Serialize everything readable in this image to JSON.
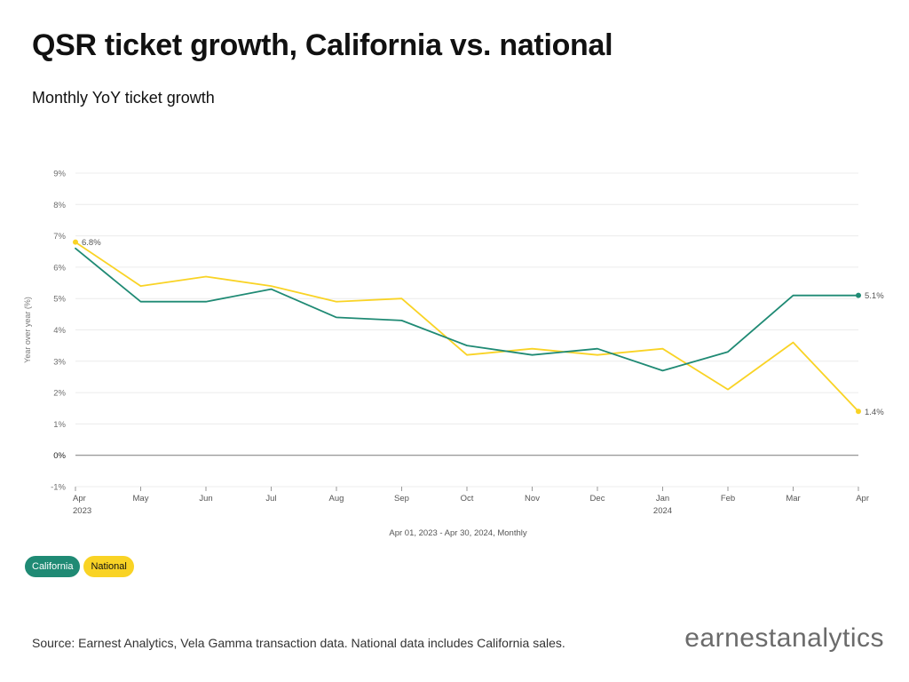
{
  "title": "QSR ticket growth, California vs. national",
  "subtitle": "Monthly YoY ticket growth",
  "chart_data": {
    "type": "line",
    "categories": [
      "Apr",
      "May",
      "Jun",
      "Jul",
      "Aug",
      "Sep",
      "Oct",
      "Nov",
      "Dec",
      "Jan",
      "Feb",
      "Mar",
      "Apr"
    ],
    "year_labels": [
      "2023",
      "",
      "",
      "",
      "",
      "",
      "",
      "",
      "",
      "2024",
      "",
      "",
      ""
    ],
    "series": [
      {
        "name": "California",
        "color": "#1f8a74",
        "values": [
          6.6,
          4.9,
          4.9,
          5.3,
          4.4,
          4.3,
          3.5,
          3.2,
          3.4,
          2.7,
          3.3,
          5.1,
          5.1
        ]
      },
      {
        "name": "National",
        "color": "#f9d325",
        "values": [
          6.8,
          5.4,
          5.7,
          5.4,
          4.9,
          5.0,
          3.2,
          3.4,
          3.2,
          3.4,
          2.1,
          3.6,
          1.4
        ]
      }
    ],
    "ylim": [
      -1,
      9
    ],
    "yticks": [
      "-1%",
      "0%",
      "1%",
      "2%",
      "3%",
      "4%",
      "5%",
      "6%",
      "7%",
      "8%",
      "9%"
    ],
    "ylabel": "Year over year (%)",
    "xlabel": "Apr 01, 2023 - Apr 30, 2024, Monthly",
    "annotations": [
      {
        "series": 1,
        "index": 0,
        "label": "6.8%"
      },
      {
        "series": 0,
        "index": 12,
        "label": "5.1%"
      },
      {
        "series": 1,
        "index": 12,
        "label": "1.4%"
      }
    ],
    "grid": true,
    "legend": "bottom-left"
  },
  "legend": {
    "california": "California",
    "national": "National"
  },
  "source": "Source: Earnest Analytics, Vela Gamma transaction data. National data includes California sales.",
  "logo": {
    "bold_part": "earnest",
    "light_part": "analytics"
  }
}
